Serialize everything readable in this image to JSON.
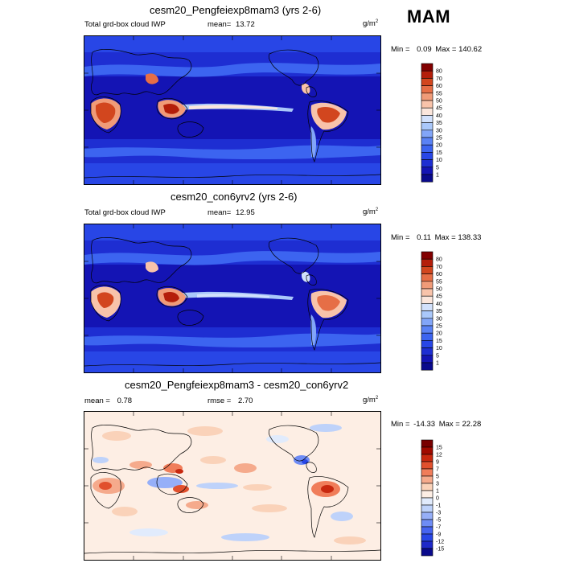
{
  "season": "MAM",
  "panels": [
    {
      "id": "exp",
      "title": "cesm20_Pengfeiexp8mam3 (yrs 2-6)",
      "left_label": "Total grd-box cloud IWP",
      "mean_label": "mean=",
      "mean_value": "13.72",
      "units": "g/m",
      "units_exp": "2",
      "min_label": "Min =",
      "min_value": "0.09",
      "max_label": "Max =",
      "max_value": "140.62",
      "colorbar_levels": [
        "1",
        "5",
        "10",
        "15",
        "20",
        "25",
        "30",
        "35",
        "40",
        "45",
        "50",
        "55",
        "60",
        "70",
        "80"
      ]
    },
    {
      "id": "ctl",
      "title": "cesm20_con6yrv2 (yrs 2-6)",
      "left_label": "Total grd-box cloud IWP",
      "mean_label": "mean=",
      "mean_value": "12.95",
      "units": "g/m",
      "units_exp": "2",
      "min_label": "Min =",
      "min_value": "0.11",
      "max_label": "Max =",
      "max_value": "138.33",
      "colorbar_levels": [
        "1",
        "5",
        "10",
        "15",
        "20",
        "25",
        "30",
        "35",
        "40",
        "45",
        "50",
        "55",
        "60",
        "70",
        "80"
      ]
    },
    {
      "id": "diff",
      "title": "cesm20_Pengfeiexp8mam3 - cesm20_con6yrv2",
      "mean_label": "mean =",
      "mean_value": "0.78",
      "rmse_label": "rmse =",
      "rmse_value": "2.70",
      "units": "g/m",
      "units_exp": "2",
      "min_label": "Min =",
      "min_value": "-14.33",
      "max_label": "Max =",
      "max_value": "22.28",
      "colorbar_levels": [
        "-15",
        "-12",
        "-9",
        "-7",
        "-5",
        "-3",
        "-1",
        "0",
        "1",
        "3",
        "5",
        "7",
        "9",
        "12",
        "15"
      ]
    }
  ],
  "colors": {
    "seq": [
      "#0a0a8c",
      "#1414b4",
      "#1e2ed2",
      "#2846e6",
      "#3c64f0",
      "#5a82f5",
      "#82a5f8",
      "#aac8fa",
      "#d2e1fc",
      "#fbe6dc",
      "#f8c3aa",
      "#f09b78",
      "#e66e46",
      "#d2461e",
      "#b41e0a",
      "#820000"
    ],
    "div": [
      "#0a0a8c",
      "#1e28c8",
      "#2846e6",
      "#4664f0",
      "#6e8cf5",
      "#96aff8",
      "#bed2fa",
      "#e1ebfc",
      "#fdeee4",
      "#fad2b9",
      "#f5aa8c",
      "#f07d5a",
      "#e1502d",
      "#c8280f",
      "#a00a00",
      "#780000"
    ]
  },
  "chart_data": [
    {
      "type": "heatmap",
      "title": "cesm20_Pengfeiexp8mam3 (yrs 2-6)",
      "subtitle": "Total grd-box cloud IWP",
      "units": "g/m2",
      "mean": 13.72,
      "min": 0.09,
      "max": 140.62,
      "levels": [
        1,
        5,
        10,
        15,
        20,
        25,
        30,
        35,
        40,
        45,
        50,
        55,
        60,
        70,
        80
      ]
    },
    {
      "type": "heatmap",
      "title": "cesm20_con6yrv2 (yrs 2-6)",
      "subtitle": "Total grd-box cloud IWP",
      "units": "g/m2",
      "mean": 12.95,
      "min": 0.11,
      "max": 138.33,
      "levels": [
        1,
        5,
        10,
        15,
        20,
        25,
        30,
        35,
        40,
        45,
        50,
        55,
        60,
        70,
        80
      ]
    },
    {
      "type": "heatmap",
      "title": "cesm20_Pengfeiexp8mam3 - cesm20_con6yrv2",
      "units": "g/m2",
      "mean": 0.78,
      "rmse": 2.7,
      "min": -14.33,
      "max": 22.28,
      "levels": [
        -15,
        -12,
        -9,
        -7,
        -5,
        -3,
        -1,
        0,
        1,
        3,
        5,
        7,
        9,
        12,
        15
      ]
    }
  ]
}
